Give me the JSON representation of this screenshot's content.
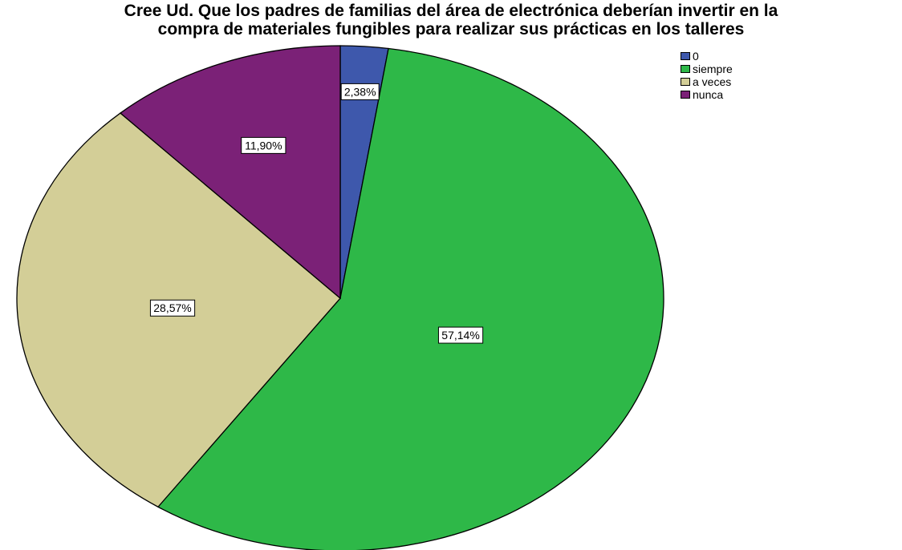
{
  "chart_data": {
    "type": "pie",
    "title_lines": [
      "Cree Ud. Que los padres de familias del área de electrónica deberían invertir en la",
      "compra de materiales fungibles para realizar sus prácticas en los talleres"
    ],
    "slices": [
      {
        "name": "0",
        "value": 2.38,
        "label": "2,38%",
        "color": "#3E58AC"
      },
      {
        "name": "siempre",
        "value": 57.14,
        "label": "57,14%",
        "color": "#2EB848"
      },
      {
        "name": "a veces",
        "value": 28.57,
        "label": "28,57%",
        "color": "#D3CE97"
      },
      {
        "name": "nunca",
        "value": 11.9,
        "label": "11,90%",
        "color": "#7B2177"
      }
    ],
    "start_angle_deg": 0,
    "direction": "clockwise",
    "legend_position": "top-right"
  },
  "legend": {
    "items": [
      {
        "label": "0",
        "color": "#3E58AC"
      },
      {
        "label": "siempre",
        "color": "#2EB848"
      },
      {
        "label": "a veces",
        "color": "#D3CE97"
      },
      {
        "label": "nunca",
        "color": "#7B2177"
      }
    ]
  }
}
